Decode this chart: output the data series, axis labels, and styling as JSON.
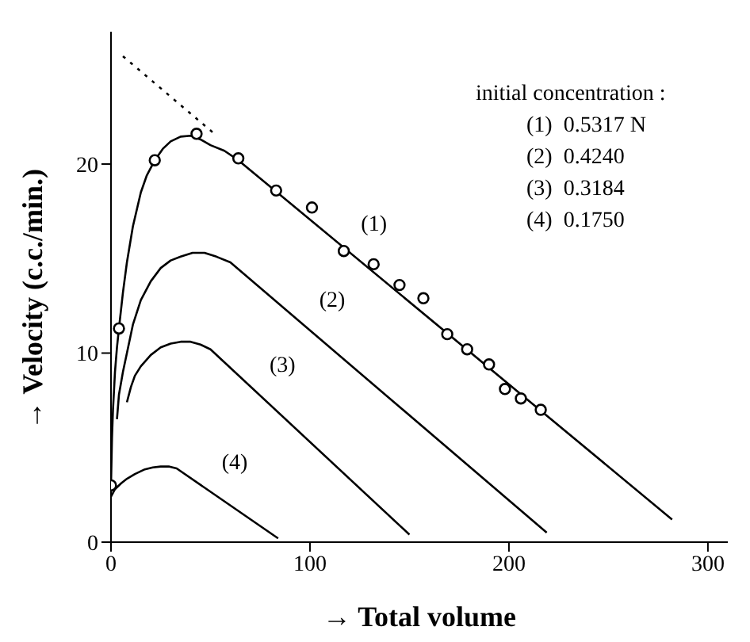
{
  "chart_data": {
    "type": "line",
    "xlabel": "→ Total volume",
    "ylabel": "→ Velocity (c.c./min.)",
    "xlim": [
      0,
      310
    ],
    "ylim": [
      0,
      27
    ],
    "xticks": [
      0,
      100,
      200,
      300
    ],
    "yticks": [
      0,
      10,
      20
    ],
    "grid": false,
    "legend": false,
    "series": [
      {
        "color": "#000000",
        "line_style": "solid",
        "marker": "none",
        "x": [
          0,
          0.5,
          1,
          2,
          3,
          4,
          6,
          8,
          11,
          15,
          18,
          22,
          26,
          30,
          35,
          40,
          45,
          50,
          57,
          64,
          282
        ],
        "values": [
          3,
          5.5,
          7,
          9,
          10.3,
          11.3,
          13.2,
          14.8,
          16.7,
          18.5,
          19.4,
          20.2,
          20.8,
          21.2,
          21.45,
          21.5,
          21.3,
          21,
          20.7,
          20.2,
          1.2
        ]
      },
      {
        "color": "#000000",
        "line_style": "solid",
        "marker": "none",
        "x": [
          3,
          4,
          6,
          8,
          11,
          15,
          20,
          25,
          30,
          35,
          41,
          47,
          53,
          60,
          219
        ],
        "values": [
          6.5,
          7.8,
          9,
          10,
          11.5,
          12.8,
          13.8,
          14.5,
          14.9,
          15.1,
          15.3,
          15.3,
          15.1,
          14.8,
          0.5
        ]
      },
      {
        "color": "#000000",
        "line_style": "solid",
        "marker": "none",
        "x": [
          8,
          10,
          12,
          15,
          20,
          25,
          30,
          35,
          40,
          45,
          50,
          150
        ],
        "values": [
          7.4,
          8.2,
          8.8,
          9.3,
          9.9,
          10.3,
          10.5,
          10.6,
          10.6,
          10.45,
          10.2,
          0.4
        ]
      },
      {
        "color": "#000000",
        "line_style": "solid",
        "marker": "none",
        "x": [
          0,
          2,
          5,
          8,
          12,
          17,
          21,
          25,
          29,
          33,
          84
        ],
        "values": [
          2.4,
          2.8,
          3.1,
          3.35,
          3.6,
          3.85,
          3.95,
          4.0,
          4.0,
          3.9,
          0.2
        ]
      },
      {
        "color": "#000000",
        "line_style": "dotted",
        "marker": "none",
        "x": [
          6,
          52
        ],
        "values": [
          25.7,
          21.6
        ]
      },
      {
        "type": "scatter",
        "color": "#000000",
        "marker": "circle",
        "x": [
          0,
          4,
          22,
          43,
          64,
          83,
          101,
          117,
          132,
          145,
          157,
          169,
          179,
          190,
          198,
          206,
          216
        ],
        "values": [
          3.0,
          11.3,
          20.2,
          21.6,
          20.3,
          18.6,
          17.7,
          15.4,
          14.7,
          13.6,
          12.9,
          11.0,
          10.2,
          9.4,
          8.1,
          7.6,
          7.0
        ]
      }
    ],
    "annotations": [
      {
        "text": "(1)",
        "x": 121,
        "y": 15.2
      },
      {
        "text": "(2)",
        "x": 100,
        "y": 11.2
      },
      {
        "text": "(3)",
        "x": 75,
        "y": 7.75
      },
      {
        "text": "(4)",
        "x": 51,
        "y": 2.6
      },
      "initial concentration :",
      "(1)  0.5317 N",
      "(2)  0.4240",
      "(3)  0.3184",
      "(4)  0.1750"
    ]
  }
}
